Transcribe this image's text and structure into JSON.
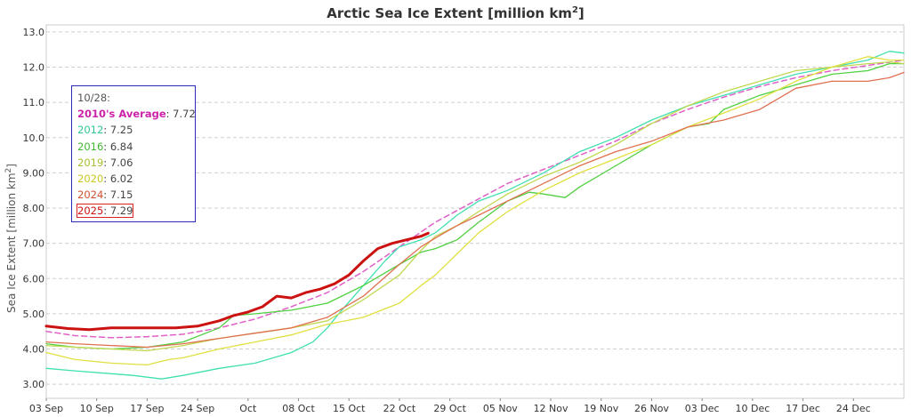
{
  "chart_data": {
    "type": "line",
    "title": "Arctic Sea Ice Extent [million km",
    "title_sup": "2",
    "title_end": "]",
    "ylabel": "Sea Ice Extent [million km",
    "ylabel_sup": "2",
    "ylabel_end": "]",
    "ylim": [
      2.6,
      13.2
    ],
    "yticks": [
      "3.00",
      "4.00",
      "5.00",
      "6.00",
      "7.00",
      "8.00",
      "9.00",
      "10.0",
      "11.0",
      "12.0",
      "13.0"
    ],
    "ytick_values": [
      3,
      4,
      5,
      6,
      7,
      8,
      9,
      10,
      11,
      12,
      13
    ],
    "xlim": [
      246,
      365
    ],
    "xtick_positions": [
      246,
      253,
      260,
      267,
      274,
      281,
      288,
      295,
      302,
      309,
      316,
      323,
      330,
      337,
      344,
      351,
      358
    ],
    "xticks": [
      "03 Sep",
      "10 Sep",
      "17 Sep",
      "24 Sep",
      "Oct",
      "08 Oct",
      "15 Oct",
      "22 Oct",
      "29 Oct",
      "05 Nov",
      "12 Nov",
      "19 Nov",
      "26 Nov",
      "03 Dec",
      "10 Dec",
      "17 Dec",
      "24 Dec"
    ],
    "grid": true,
    "series": [
      {
        "name": "2010's Average",
        "color": "#e060c8",
        "dashed": true,
        "width": 1.5,
        "x": [
          246,
          250,
          255,
          260,
          265,
          270,
          275,
          280,
          285,
          290,
          295,
          300,
          305,
          310,
          315,
          320,
          325,
          330,
          335,
          340,
          345,
          350,
          355,
          360,
          365
        ],
        "y": [
          4.5,
          4.38,
          4.32,
          4.35,
          4.42,
          4.6,
          4.85,
          5.2,
          5.6,
          6.2,
          6.9,
          7.6,
          8.15,
          8.7,
          9.1,
          9.5,
          9.9,
          10.4,
          10.8,
          11.15,
          11.45,
          11.7,
          11.9,
          12.05,
          12.2
        ]
      },
      {
        "name": "2012",
        "color": "#40e0b0",
        "width": 1.3,
        "x": [
          246,
          250,
          255,
          258,
          260,
          262,
          265,
          270,
          275,
          280,
          283,
          285,
          287,
          290,
          293,
          295,
          298,
          300,
          303,
          306,
          310,
          315,
          320,
          325,
          330,
          335,
          340,
          345,
          350,
          355,
          360,
          363,
          365
        ],
        "y": [
          3.45,
          3.38,
          3.3,
          3.25,
          3.2,
          3.15,
          3.25,
          3.45,
          3.6,
          3.9,
          4.2,
          4.6,
          5.1,
          5.8,
          6.5,
          6.9,
          7.1,
          7.3,
          7.8,
          8.2,
          8.5,
          9.0,
          9.6,
          10.0,
          10.5,
          10.9,
          11.2,
          11.5,
          11.8,
          12.0,
          12.2,
          12.45,
          12.4
        ]
      },
      {
        "name": "2016",
        "color": "#50d040",
        "width": 1.3,
        "x": [
          246,
          250,
          255,
          260,
          265,
          270,
          272,
          275,
          280,
          285,
          290,
          295,
          298,
          300,
          303,
          306,
          310,
          313,
          315,
          318,
          320,
          325,
          330,
          335,
          338,
          340,
          345,
          350,
          355,
          360,
          363,
          365
        ],
        "y": [
          4.15,
          4.05,
          4.0,
          4.05,
          4.2,
          4.6,
          4.95,
          5.0,
          5.1,
          5.3,
          5.8,
          6.4,
          6.75,
          6.85,
          7.1,
          7.6,
          8.2,
          8.45,
          8.4,
          8.3,
          8.6,
          9.2,
          9.8,
          10.3,
          10.4,
          10.8,
          11.2,
          11.5,
          11.8,
          11.9,
          12.1,
          12.1
        ]
      },
      {
        "name": "2019",
        "color": "#c0d850",
        "width": 1.3,
        "x": [
          246,
          250,
          255,
          260,
          265,
          270,
          275,
          280,
          285,
          290,
          295,
          298,
          300,
          303,
          306,
          310,
          315,
          320,
          325,
          330,
          335,
          340,
          345,
          350,
          355,
          360,
          363,
          365
        ],
        "y": [
          4.1,
          4.05,
          4.0,
          3.95,
          4.1,
          4.3,
          4.45,
          4.6,
          4.8,
          5.4,
          6.1,
          6.8,
          7.2,
          7.5,
          7.9,
          8.4,
          8.9,
          9.3,
          9.8,
          10.4,
          10.9,
          11.3,
          11.6,
          11.9,
          12.0,
          12.1,
          12.15,
          12.1
        ]
      },
      {
        "name": "2020",
        "color": "#e0e040",
        "width": 1.3,
        "x": [
          246,
          250,
          255,
          260,
          263,
          265,
          270,
          275,
          280,
          285,
          290,
          295,
          298,
          300,
          303,
          306,
          310,
          315,
          320,
          325,
          330,
          335,
          340,
          345,
          350,
          355,
          360,
          363,
          365
        ],
        "y": [
          3.9,
          3.7,
          3.6,
          3.55,
          3.7,
          3.75,
          4.0,
          4.2,
          4.4,
          4.7,
          4.9,
          5.3,
          5.8,
          6.1,
          6.7,
          7.3,
          7.9,
          8.5,
          9.0,
          9.4,
          9.8,
          10.3,
          10.7,
          11.1,
          11.6,
          12.0,
          12.3,
          12.2,
          12.2
        ]
      },
      {
        "name": "2024",
        "color": "#e07050",
        "width": 1.3,
        "x": [
          246,
          250,
          255,
          260,
          265,
          270,
          275,
          280,
          285,
          290,
          295,
          298,
          300,
          303,
          306,
          310,
          315,
          320,
          325,
          330,
          335,
          340,
          345,
          350,
          355,
          360,
          363,
          365
        ],
        "y": [
          4.2,
          4.15,
          4.1,
          4.05,
          4.15,
          4.3,
          4.45,
          4.6,
          4.9,
          5.5,
          6.4,
          6.9,
          7.15,
          7.5,
          7.8,
          8.2,
          8.7,
          9.2,
          9.6,
          9.9,
          10.3,
          10.5,
          10.8,
          11.4,
          11.6,
          11.6,
          11.7,
          11.85
        ]
      },
      {
        "name": "2025",
        "color": "#cc1111",
        "width": 3,
        "x": [
          246,
          249,
          252,
          255,
          258,
          261,
          264,
          267,
          270,
          272,
          274,
          276,
          278,
          280,
          282,
          284,
          286,
          288,
          290,
          292,
          294,
          296,
          298,
          299
        ],
        "y": [
          4.65,
          4.58,
          4.55,
          4.6,
          4.6,
          4.6,
          4.6,
          4.65,
          4.8,
          4.95,
          5.05,
          5.2,
          5.5,
          5.45,
          5.6,
          5.7,
          5.85,
          6.1,
          6.5,
          6.85,
          7.0,
          7.1,
          7.2,
          7.29
        ]
      }
    ],
    "legend": {
      "placement": "top-left",
      "date": "10/28:",
      "entries": [
        {
          "name": "2010's Average",
          "value": "7.72",
          "color": "#cc22aa",
          "bold": true
        },
        {
          "name": "2012",
          "value": "7.25",
          "color": "#30c890"
        },
        {
          "name": "2016",
          "value": "6.84",
          "color": "#40b830"
        },
        {
          "name": "2019",
          "value": "7.06",
          "color": "#a8c030"
        },
        {
          "name": "2020",
          "value": "6.02",
          "color": "#c8c820"
        },
        {
          "name": "2024",
          "value": "7.15",
          "color": "#d05030"
        },
        {
          "name": "2025",
          "value": "7.29",
          "color": "#cc1111",
          "boxed": true
        }
      ]
    }
  }
}
